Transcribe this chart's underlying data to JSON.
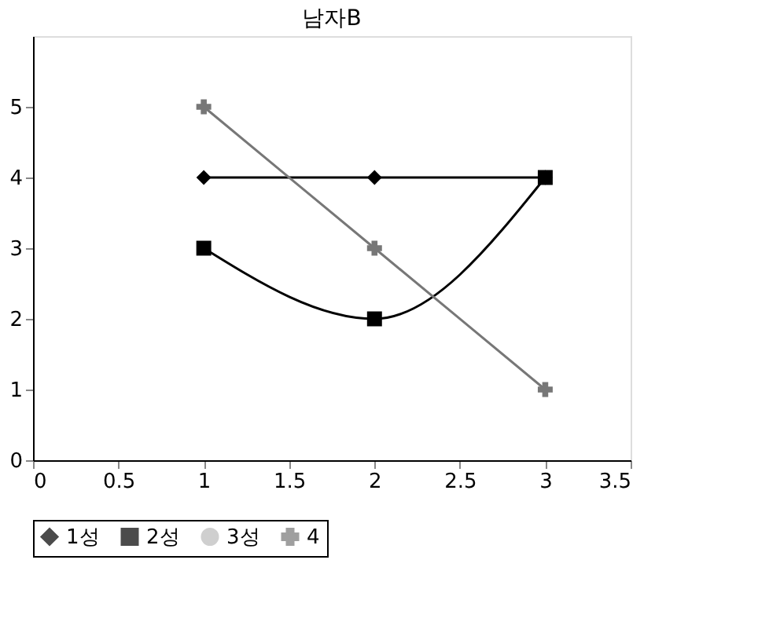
{
  "chart_data": {
    "type": "line",
    "title": "남자B",
    "x": [
      1,
      2,
      3
    ],
    "series": [
      {
        "name": "1성",
        "color": "#000000",
        "marker": "diamond",
        "values": [
          4,
          4,
          4
        ]
      },
      {
        "name": "2성",
        "color": "#000000",
        "marker": "square",
        "values": [
          3,
          2,
          4
        ]
      },
      {
        "name": "3성",
        "color": "#bbbbbb",
        "marker": "none",
        "values": [
          null,
          null,
          null
        ]
      },
      {
        "name": "4",
        "color": "#777777",
        "marker": "cross",
        "values": [
          5,
          3,
          1
        ]
      }
    ],
    "xlim": [
      0,
      3.5
    ],
    "xticks": [
      0,
      0.5,
      1,
      1.5,
      2,
      2.5,
      3,
      3.5
    ],
    "ylim": [
      0,
      6
    ],
    "yticks": [
      0,
      1,
      2,
      3,
      4,
      5
    ],
    "grid": false,
    "legend": "bottom"
  }
}
